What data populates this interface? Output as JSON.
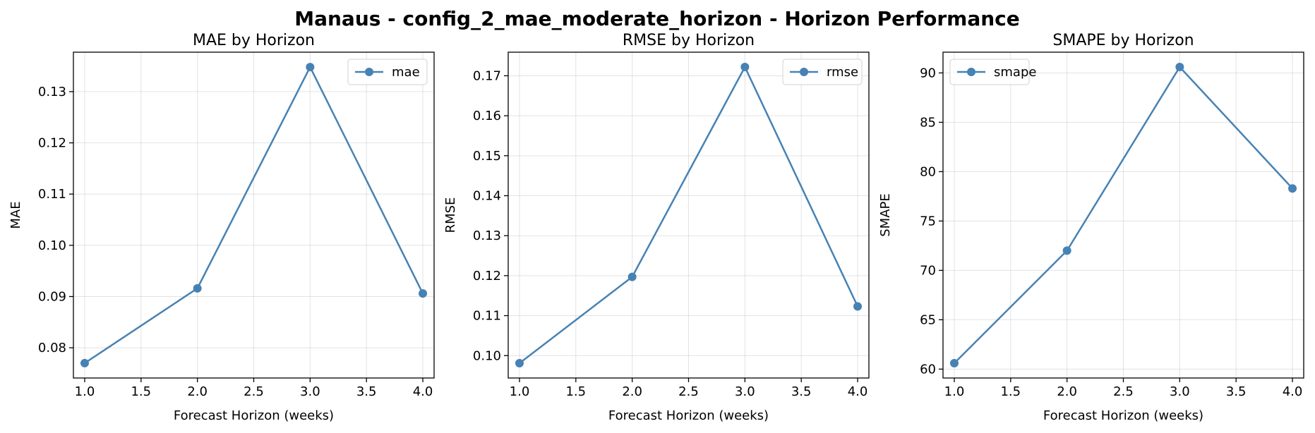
{
  "figure": {
    "title": "Manaus - config_2_mae_moderate_horizon - Horizon Performance",
    "line_color": "#4682b4"
  },
  "chart_data": [
    {
      "type": "line",
      "title": "MAE by Horizon",
      "xlabel": "Forecast Horizon (weeks)",
      "ylabel": "MAE",
      "x": [
        1.0,
        2.0,
        3.0,
        4.0
      ],
      "series": [
        {
          "name": "mae",
          "values": [
            0.077,
            0.0916,
            0.1348,
            0.0906
          ]
        }
      ],
      "xlim": [
        0.9,
        4.1
      ],
      "ylim": [
        0.0741,
        0.1377
      ],
      "xticks": [
        1.0,
        1.5,
        2.0,
        2.5,
        3.0,
        3.5,
        4.0
      ],
      "xtick_labels": [
        "1.0",
        "1.5",
        "2.0",
        "2.5",
        "3.0",
        "3.5",
        "4.0"
      ],
      "yticks": [
        0.08,
        0.09,
        0.1,
        0.11,
        0.12,
        0.13
      ],
      "ytick_labels": [
        "0.08",
        "0.09",
        "0.10",
        "0.11",
        "0.12",
        "0.13"
      ],
      "grid": true,
      "legend": "upper right"
    },
    {
      "type": "line",
      "title": "RMSE by Horizon",
      "xlabel": "Forecast Horizon (weeks)",
      "ylabel": "RMSE",
      "x": [
        1.0,
        2.0,
        3.0,
        4.0
      ],
      "series": [
        {
          "name": "rmse",
          "values": [
            0.0981,
            0.1197,
            0.1722,
            0.1123
          ]
        }
      ],
      "xlim": [
        0.9,
        4.1
      ],
      "ylim": [
        0.0944,
        0.1759
      ],
      "xticks": [
        1.0,
        1.5,
        2.0,
        2.5,
        3.0,
        3.5,
        4.0
      ],
      "xtick_labels": [
        "1.0",
        "1.5",
        "2.0",
        "2.5",
        "3.0",
        "3.5",
        "4.0"
      ],
      "yticks": [
        0.1,
        0.11,
        0.12,
        0.13,
        0.14,
        0.15,
        0.16,
        0.17
      ],
      "ytick_labels": [
        "0.10",
        "0.11",
        "0.12",
        "0.13",
        "0.14",
        "0.15",
        "0.16",
        "0.17"
      ],
      "grid": true,
      "legend": "upper right"
    },
    {
      "type": "line",
      "title": "SMAPE by Horizon",
      "xlabel": "Forecast Horizon (weeks)",
      "ylabel": "SMAPE",
      "x": [
        1.0,
        2.0,
        3.0,
        4.0
      ],
      "series": [
        {
          "name": "smape",
          "values": [
            60.6,
            72.0,
            90.6,
            78.3
          ]
        }
      ],
      "xlim": [
        0.9,
        4.1
      ],
      "ylim": [
        59.1,
        92.1
      ],
      "xticks": [
        1.0,
        1.5,
        2.0,
        2.5,
        3.0,
        3.5,
        4.0
      ],
      "xtick_labels": [
        "1.0",
        "1.5",
        "2.0",
        "2.5",
        "3.0",
        "3.5",
        "4.0"
      ],
      "yticks": [
        60,
        65,
        70,
        75,
        80,
        85,
        90
      ],
      "ytick_labels": [
        "60",
        "65",
        "70",
        "75",
        "80",
        "85",
        "90"
      ],
      "grid": true,
      "legend": "upper left"
    }
  ]
}
